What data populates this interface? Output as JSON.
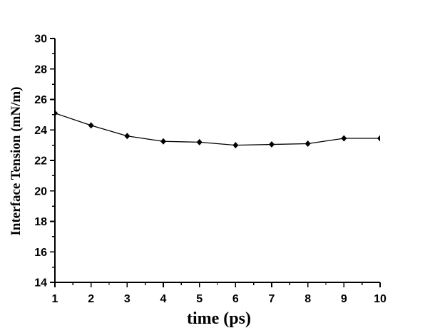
{
  "figure": {
    "background": "#ffffff",
    "foreground": "#000000"
  },
  "chart_data": {
    "type": "line",
    "title": "",
    "xlabel": "time (ps)",
    "ylabel": "Interface Tension (mN/m)",
    "x": [
      1,
      2,
      3,
      4,
      5,
      6,
      7,
      8,
      9,
      10
    ],
    "series": [
      {
        "name": "interface-tension",
        "values": [
          25.1,
          24.3,
          23.6,
          23.25,
          23.2,
          23.0,
          23.05,
          23.1,
          23.45,
          23.45
        ],
        "marker": "filled-diamond",
        "color": "#000000"
      }
    ],
    "xlim": [
      1,
      10
    ],
    "ylim": [
      14,
      30
    ],
    "x_major_ticks": [
      1,
      2,
      3,
      4,
      5,
      6,
      7,
      8,
      9,
      10
    ],
    "y_major_ticks": [
      14,
      16,
      18,
      20,
      22,
      24,
      26,
      28,
      30
    ],
    "minor_ticks": "midpoints-between-majors",
    "tick_direction": "out",
    "grid": false,
    "legend": "none",
    "frame": "left-and-bottom-axes-only",
    "axis_color": "#000000",
    "markers_clipped_at_plot_edges": true
  }
}
